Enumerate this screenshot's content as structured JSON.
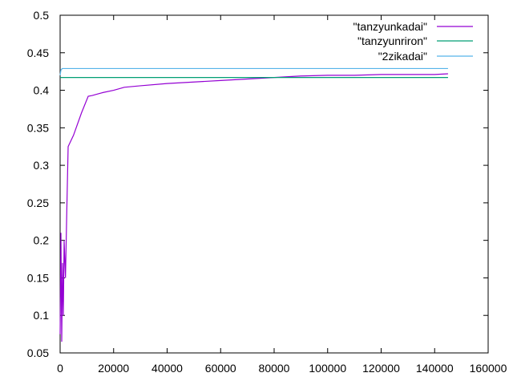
{
  "chart_data": {
    "type": "line",
    "title": "",
    "xlabel": "",
    "ylabel": "",
    "xlim": [
      0,
      160000
    ],
    "ylim": [
      0.05,
      0.5
    ],
    "x_ticks": [
      0,
      20000,
      40000,
      60000,
      80000,
      100000,
      120000,
      140000,
      160000
    ],
    "x_tick_labels": [
      "0",
      "20000",
      "40000",
      "60000",
      "80000",
      "100000",
      "120000",
      "140000",
      "160000"
    ],
    "y_ticks": [
      0.05,
      0.1,
      0.15,
      0.2,
      0.25,
      0.3,
      0.35,
      0.4,
      0.45,
      0.5
    ],
    "y_tick_labels": [
      "0.05",
      "0.1",
      "0.15",
      "0.2",
      "0.25",
      "0.3",
      "0.35",
      "0.4",
      "0.45",
      "0.5"
    ],
    "grid": false,
    "legend_position": "top-right",
    "series": [
      {
        "name": "\"tanzyunkadai\"",
        "color": "#9400d3",
        "x": [
          0,
          300,
          600,
          900,
          1200,
          1500,
          2000,
          2500,
          3000,
          5000,
          8000,
          10500,
          12000,
          14000,
          16000,
          20000,
          24000,
          30000,
          40000,
          50000,
          60000,
          70000,
          80000,
          90000,
          100000,
          110000,
          120000,
          130000,
          140000,
          145000
        ],
        "y": [
          0.075,
          0.21,
          0.065,
          0.17,
          0.1,
          0.2,
          0.15,
          0.24,
          0.325,
          0.34,
          0.37,
          0.392,
          0.393,
          0.395,
          0.397,
          0.4,
          0.404,
          0.406,
          0.409,
          0.411,
          0.413,
          0.415,
          0.417,
          0.419,
          0.42,
          0.42,
          0.421,
          0.421,
          0.421,
          0.422
        ]
      },
      {
        "name": "\"tanzyunriron\"",
        "color": "#009e73",
        "x": [
          0,
          145000
        ],
        "y": [
          0.417,
          0.417
        ]
      },
      {
        "name": "\"2zikadai\"",
        "color": "#56b4e9",
        "x": [
          0,
          300,
          800,
          145000
        ],
        "y": [
          0.42,
          0.427,
          0.429,
          0.429
        ]
      }
    ]
  }
}
